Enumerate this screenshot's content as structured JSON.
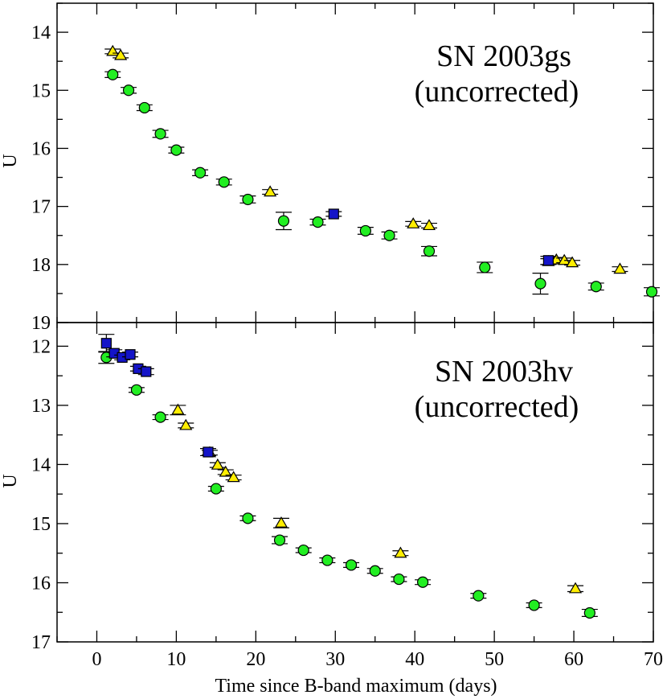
{
  "colors": {
    "circle": "#22ee22",
    "triangle": "#ffee00",
    "square": "#1414c8",
    "stroke": "#000000"
  },
  "xlabel": "Time since B-band maximum (days)",
  "xticks": [
    "0",
    "10",
    "20",
    "30",
    "40",
    "50",
    "60",
    "70"
  ],
  "chart_data": [
    {
      "type": "scatter",
      "title": "SN 2003gs",
      "subtitle": "(uncorrected)",
      "xlabel": "Time since B-band maximum (days)",
      "ylabel": "U",
      "xlim": [
        -5,
        70
      ],
      "ylim": [
        19,
        13.5
      ],
      "y_inverted": true,
      "yticks": [
        "14",
        "15",
        "16",
        "17",
        "18",
        "19"
      ],
      "legend": "none",
      "series": [
        {
          "marker": "circle",
          "color": "#22ee22",
          "x": [
            2,
            4,
            6,
            8,
            10,
            13,
            16,
            19,
            23.5,
            27.8,
            33.8,
            36.8,
            41.8,
            48.8,
            55.8,
            62.8,
            69.8
          ],
          "y": [
            14.73,
            15.0,
            15.3,
            15.75,
            16.03,
            16.42,
            16.58,
            16.88,
            17.25,
            17.27,
            17.42,
            17.5,
            17.77,
            18.05,
            18.33,
            18.38,
            18.47
          ],
          "err": [
            0.05,
            0.05,
            0.05,
            0.06,
            0.05,
            0.05,
            0.05,
            0.06,
            0.15,
            0.05,
            0.06,
            0.06,
            0.08,
            0.09,
            0.18,
            0.06,
            0.07
          ]
        },
        {
          "marker": "triangle",
          "color": "#ffee00",
          "x": [
            2,
            3,
            21.8,
            39.8,
            41.8,
            56.8,
            57.8,
            58.8,
            59.8,
            65.8
          ],
          "y": [
            14.33,
            14.4,
            16.75,
            17.3,
            17.33,
            17.95,
            17.92,
            17.93,
            17.97,
            18.08
          ],
          "err": [
            0.04,
            0.04,
            0.04,
            0.04,
            0.04,
            0.05,
            0.04,
            0.04,
            0.04,
            0.04
          ]
        },
        {
          "marker": "square",
          "color": "#1414c8",
          "x": [
            29.8,
            56.8
          ],
          "y": [
            17.13,
            17.93
          ],
          "err": [
            0.04,
            0.07
          ]
        }
      ]
    },
    {
      "type": "scatter",
      "title": "SN 2003hv",
      "subtitle": "(uncorrected)",
      "xlabel": "Time since B-band maximum (days)",
      "ylabel": "U",
      "xlim": [
        -5,
        70
      ],
      "ylim": [
        17,
        11.6
      ],
      "y_inverted": true,
      "yticks": [
        "12",
        "13",
        "14",
        "15",
        "16",
        "17"
      ],
      "legend": "none",
      "series": [
        {
          "marker": "circle",
          "color": "#22ee22",
          "x": [
            1.2,
            5,
            8,
            15,
            19,
            23,
            26,
            29,
            32,
            35,
            38,
            41,
            48,
            55,
            62
          ],
          "y": [
            12.19,
            12.74,
            13.2,
            14.41,
            14.91,
            15.28,
            15.45,
            15.62,
            15.7,
            15.8,
            15.94,
            15.99,
            16.22,
            16.38,
            16.51
          ],
          "err": [
            0.1,
            0.04,
            0.04,
            0.04,
            0.04,
            0.06,
            0.04,
            0.04,
            0.04,
            0.04,
            0.04,
            0.04,
            0.04,
            0.04,
            0.06
          ]
        },
        {
          "marker": "triangle",
          "color": "#ffee00",
          "x": [
            10.2,
            11.2,
            14.2,
            15.2,
            16.2,
            17.2,
            23.2,
            38.2,
            60.2
          ],
          "y": [
            13.08,
            13.34,
            13.8,
            14.01,
            14.13,
            14.22,
            14.99,
            15.5,
            16.1
          ],
          "err": [
            0.08,
            0.04,
            0.04,
            0.04,
            0.04,
            0.04,
            0.08,
            0.04,
            0.05
          ]
        },
        {
          "marker": "square",
          "color": "#1414c8",
          "x": [
            1.2,
            2.2,
            3.2,
            4.2,
            5.2,
            6.2,
            14
          ],
          "y": [
            11.95,
            12.12,
            12.19,
            12.14,
            12.38,
            12.43,
            13.79
          ],
          "err": [
            0.15,
            0.06,
            0.04,
            0.04,
            0.04,
            0.05,
            0.06
          ]
        }
      ]
    }
  ]
}
